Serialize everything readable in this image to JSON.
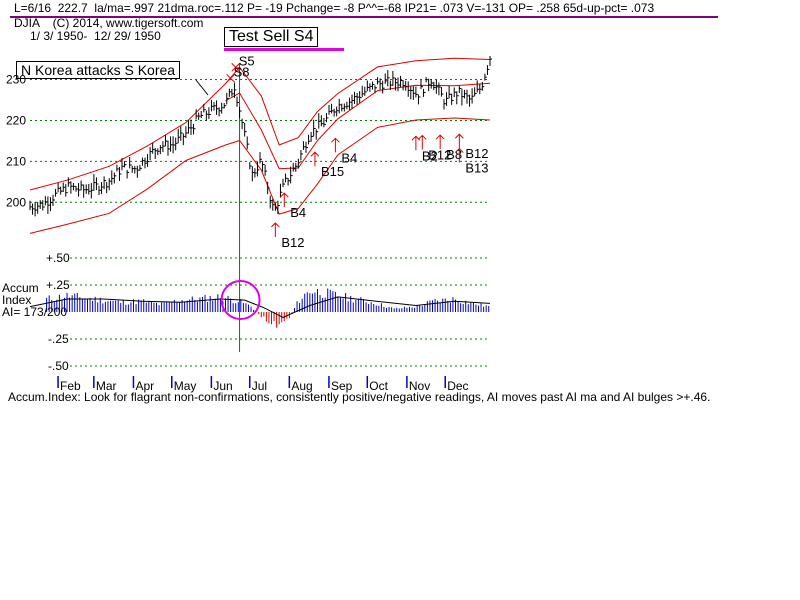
{
  "header": {
    "stats_line": "L=6/16  222.7  la/ma=.997 21dma.roc=.112 P= -19 Pchange= -8 P^^=-68 IP21= .073 V=-131 OP= .258 65d-up-pct= .073",
    "title_line": "DJIA    (C) 2014, www.tigersoft.com",
    "date_range": "1/ 3/ 1950-  12/ 29/ 1950"
  },
  "annotations": {
    "test_sell": "Test Sell S4",
    "korea": "N Korea attacks S Korea",
    "footer": "Accum.Index: Look for flagrant non-confirmations, consistently positive/negative readings, AI moves past AI ma and AI bulges >+.46."
  },
  "colors": {
    "price_bars": "#000000",
    "bands": "#e00000",
    "grid": "#008000",
    "accum_pos": "#0000c8",
    "accum_neg": "#e00000",
    "accum_ma": "#000000",
    "highlight": "#e000e0",
    "signal_arrows": "#e00000",
    "vline": "#008000"
  },
  "chart_data": {
    "type": "line",
    "title": "DJIA",
    "xlabel": "",
    "ylabel": "",
    "ylim": [
      192,
      236
    ],
    "yticks": [
      200,
      210,
      220,
      230
    ],
    "months": [
      "Feb",
      "Mar",
      "Apr",
      "May",
      "Jun",
      "Jul",
      "Aug",
      "Sep",
      "Oct",
      "Nov",
      "Dec"
    ],
    "series": [
      {
        "kind": "price",
        "points": [
          [
            "1950-01-03",
            198.9
          ],
          [
            "1950-01-13",
            199.5
          ],
          [
            "1950-01-23",
            201.8
          ],
          [
            "1950-02-02",
            203.8
          ],
          [
            "1950-02-13",
            203.0
          ],
          [
            "1950-02-23",
            203.7
          ],
          [
            "1950-03-06",
            205.3
          ],
          [
            "1950-03-16",
            208.4
          ],
          [
            "1950-03-27",
            208.2
          ],
          [
            "1950-04-05",
            211.2
          ],
          [
            "1950-04-14",
            213.8
          ],
          [
            "1950-04-25",
            214.1
          ],
          [
            "1950-05-05",
            216.8
          ],
          [
            "1950-05-16",
            221.0
          ],
          [
            "1950-05-26",
            222.6
          ],
          [
            "1950-06-05",
            224.2
          ],
          [
            "1950-06-12",
            228.4
          ],
          [
            "1950-06-16",
            222.7
          ],
          [
            "1950-06-26",
            206.7
          ],
          [
            "1950-07-03",
            210.3
          ],
          [
            "1950-07-13",
            197.5
          ],
          [
            "1950-07-21",
            204.4
          ],
          [
            "1950-07-31",
            209.4
          ],
          [
            "1950-08-10",
            216.9
          ],
          [
            "1950-08-21",
            219.5
          ],
          [
            "1950-08-31",
            223.5
          ],
          [
            "1950-09-11",
            224.8
          ],
          [
            "1950-09-21",
            226.8
          ],
          [
            "1950-10-02",
            228.9
          ],
          [
            "1950-10-11",
            229.3
          ],
          [
            "1950-10-23",
            229.6
          ],
          [
            "1950-11-02",
            226.3
          ],
          [
            "1950-11-13",
            230.1
          ],
          [
            "1950-11-24",
            224.5
          ],
          [
            "1950-12-04",
            226.9
          ],
          [
            "1950-12-14",
            224.9
          ],
          [
            "1950-12-22",
            228.1
          ],
          [
            "1950-12-29",
            235.4
          ]
        ]
      },
      {
        "kind": "upper_band",
        "points": [
          [
            "1950-01-03",
            203.0
          ],
          [
            "1950-02-02",
            205.5
          ],
          [
            "1950-03-06",
            208.8
          ],
          [
            "1950-04-05",
            213.8
          ],
          [
            "1950-05-05",
            219.5
          ],
          [
            "1950-06-05",
            229.0
          ],
          [
            "1950-06-16",
            233.0
          ],
          [
            "1950-07-03",
            226.0
          ],
          [
            "1950-07-17",
            214.0
          ],
          [
            "1950-08-01",
            215.8
          ],
          [
            "1950-08-16",
            222.2
          ],
          [
            "1950-09-01",
            226.6
          ],
          [
            "1950-10-02",
            233.1
          ],
          [
            "1950-11-01",
            234.6
          ],
          [
            "1950-12-01",
            235.2
          ],
          [
            "1950-12-29",
            234.9
          ]
        ]
      },
      {
        "kind": "moving_average",
        "points": [
          [
            "1950-06-05",
            224.8
          ],
          [
            "1950-06-16",
            226.7
          ],
          [
            "1950-07-03",
            217.7
          ],
          [
            "1950-07-17",
            208.2
          ],
          [
            "1950-08-01",
            208.4
          ],
          [
            "1950-08-16",
            215.1
          ],
          [
            "1950-09-01",
            220.4
          ],
          [
            "1950-10-02",
            227.3
          ],
          [
            "1950-11-01",
            228.6
          ],
          [
            "1950-12-01",
            228.5
          ],
          [
            "1950-12-29",
            229.1
          ]
        ]
      },
      {
        "kind": "lower_band",
        "points": [
          [
            "1950-01-03",
            192.4
          ],
          [
            "1950-02-02",
            194.7
          ],
          [
            "1950-03-06",
            197.3
          ],
          [
            "1950-04-05",
            203.3
          ],
          [
            "1950-05-05",
            210.2
          ],
          [
            "1950-06-05",
            214.0
          ],
          [
            "1950-06-16",
            215.1
          ],
          [
            "1950-07-03",
            207.9
          ],
          [
            "1950-07-17",
            197.1
          ],
          [
            "1950-08-01",
            198.5
          ],
          [
            "1950-08-16",
            204.5
          ],
          [
            "1950-09-01",
            211.6
          ],
          [
            "1950-10-02",
            218.3
          ],
          [
            "1950-11-01",
            220.1
          ],
          [
            "1950-12-01",
            220.6
          ],
          [
            "1950-12-29",
            220.1
          ]
        ]
      }
    ],
    "vertical_line_date": "1950-06-16",
    "signals": [
      {
        "label": "S5",
        "date": "1950-06-13",
        "price": 233.0,
        "type": "sell"
      },
      {
        "label": "S8",
        "date": "1950-06-09",
        "price": 230.3,
        "type": "sell"
      },
      {
        "label": "B12",
        "date": "1950-07-14",
        "price": 192.0,
        "type": "buy"
      },
      {
        "label": "B4",
        "date": "1950-07-21",
        "price": 199.3,
        "type": "buy"
      },
      {
        "label": "B15",
        "date": "1950-08-14",
        "price": 209.3,
        "type": "buy"
      },
      {
        "label": "B4",
        "date": "1950-08-30",
        "price": 212.7,
        "type": "buy"
      },
      {
        "label": "B2",
        "date": "1950-11-01",
        "price": 213.2,
        "type": "buy"
      },
      {
        "label": "B12",
        "date": "1950-11-06",
        "price": 213.4,
        "type": "buy"
      },
      {
        "label": "B8",
        "date": "1950-11-20",
        "price": 213.5,
        "type": "buy"
      },
      {
        "label": "B12",
        "date": "1950-12-05",
        "price": 213.7,
        "type": "buy"
      },
      {
        "label": "B13",
        "date": "1950-12-05",
        "price": 210.2,
        "type": "buy"
      }
    ],
    "accum": {
      "label_lines": [
        "Accum",
        "Index",
        "AI= 173/200"
      ],
      "yticks": [
        {
          "v": 0.5,
          "t": "+.50"
        },
        {
          "v": 0.25,
          "t": "+.25"
        },
        {
          "v": -0.25,
          "t": "-.25"
        },
        {
          "v": -0.5,
          "t": "-.50"
        }
      ],
      "ylim": [
        -0.5,
        0.5
      ],
      "values": [
        [
          "1950-01-03",
          0.08
        ],
        [
          "1950-01-16",
          0.12
        ],
        [
          "1950-02-01",
          0.15
        ],
        [
          "1950-02-15",
          0.13
        ],
        [
          "1950-03-01",
          0.11
        ],
        [
          "1950-03-15",
          0.09
        ],
        [
          "1950-04-01",
          0.1
        ],
        [
          "1950-04-15",
          0.07
        ],
        [
          "1950-05-01",
          0.11
        ],
        [
          "1950-05-15",
          0.12
        ],
        [
          "1950-06-01",
          0.14
        ],
        [
          "1950-06-16",
          0.1
        ],
        [
          "1950-06-25",
          0.05
        ],
        [
          "1950-07-01",
          -0.02
        ],
        [
          "1950-07-10",
          -0.1
        ],
        [
          "1950-07-15",
          -0.12
        ],
        [
          "1950-07-25",
          -0.05
        ],
        [
          "1950-08-01",
          0.1
        ],
        [
          "1950-08-10",
          0.2
        ],
        [
          "1950-08-20",
          0.18
        ],
        [
          "1950-09-01",
          0.15
        ],
        [
          "1950-09-15",
          0.12
        ],
        [
          "1950-10-01",
          0.08
        ],
        [
          "1950-10-15",
          0.03
        ],
        [
          "1950-11-01",
          0.05
        ],
        [
          "1950-11-15",
          0.1
        ],
        [
          "1950-12-01",
          0.12
        ],
        [
          "1950-12-15",
          0.08
        ],
        [
          "1950-12-29",
          0.05
        ]
      ],
      "ma": [
        [
          "1950-01-03",
          0.05
        ],
        [
          "1950-02-01",
          0.12
        ],
        [
          "1950-03-01",
          0.12
        ],
        [
          "1950-04-01",
          0.1
        ],
        [
          "1950-05-01",
          0.09
        ],
        [
          "1950-06-01",
          0.12
        ],
        [
          "1950-06-20",
          0.11
        ],
        [
          "1950-07-05",
          0.04
        ],
        [
          "1950-07-20",
          -0.05
        ],
        [
          "1950-08-10",
          0.06
        ],
        [
          "1950-09-01",
          0.14
        ],
        [
          "1950-10-01",
          0.1
        ],
        [
          "1950-11-01",
          0.06
        ],
        [
          "1950-12-01",
          0.1
        ],
        [
          "1950-12-29",
          0.08
        ]
      ]
    }
  }
}
